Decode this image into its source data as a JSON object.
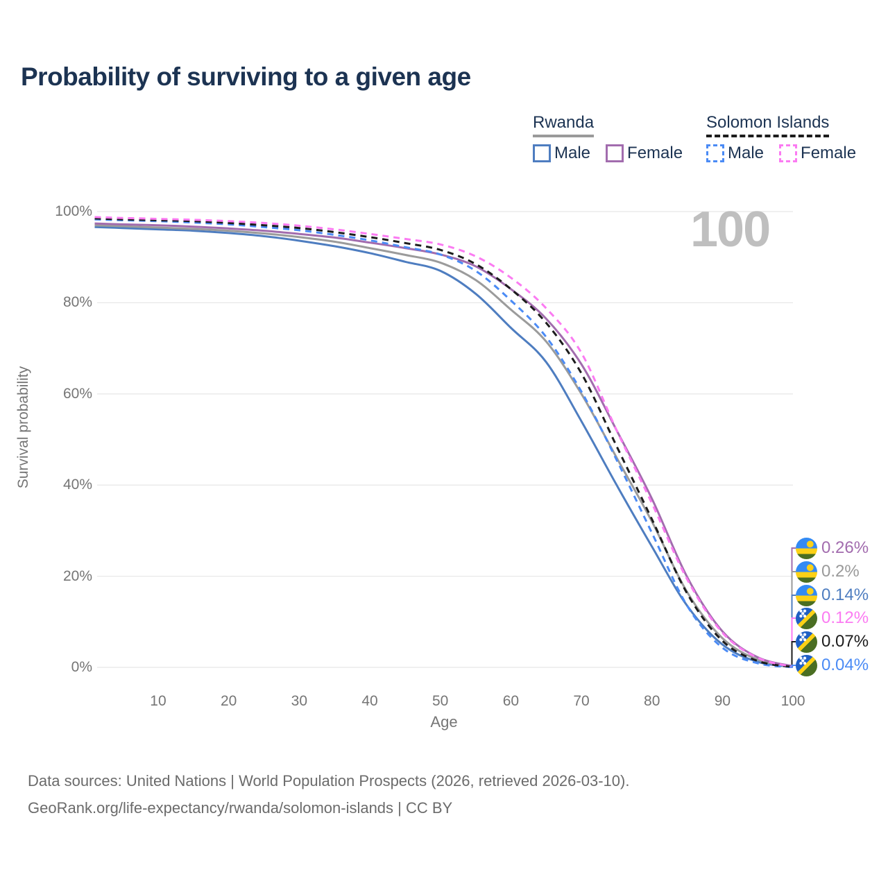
{
  "title": "Probability of surviving to a given age",
  "watermark": "100",
  "legend": {
    "groups": [
      {
        "id": "rwanda",
        "title": "Rwanda",
        "line_style": "solid",
        "underline_color": "#9a9a9a",
        "items": [
          {
            "label": "Male",
            "color": "#4e7dc0"
          },
          {
            "label": "Female",
            "color": "#a26cae"
          }
        ]
      },
      {
        "id": "solomon-islands",
        "title": "Solomon Islands",
        "line_style": "dashed",
        "underline_color": "#1c1c1c",
        "items": [
          {
            "label": "Male",
            "color": "#4b8bf5"
          },
          {
            "label": "Female",
            "color": "#fb7bf2"
          }
        ]
      }
    ]
  },
  "chart_data": {
    "type": "line",
    "title": "Probability of surviving to a given age",
    "xlabel": "Age",
    "ylabel": "Survival probability",
    "xlim": [
      0,
      100
    ],
    "ylim": [
      0,
      100
    ],
    "grid": "horizontal",
    "legend_position": "top-right",
    "x_ticks": [
      "10",
      "20",
      "30",
      "40",
      "50",
      "60",
      "70",
      "80",
      "90",
      "100"
    ],
    "y_ticks": [
      {
        "label": "100%",
        "value": 100
      },
      {
        "label": "80%",
        "value": 80
      },
      {
        "label": "60%",
        "value": 60
      },
      {
        "label": "40%",
        "value": 40
      },
      {
        "label": "20%",
        "value": 20
      },
      {
        "label": "0%",
        "value": 0
      }
    ],
    "ages": [
      1,
      5,
      10,
      15,
      20,
      25,
      30,
      35,
      40,
      45,
      50,
      55,
      60,
      65,
      70,
      75,
      80,
      85,
      90,
      95,
      100
    ],
    "series": [
      {
        "id": "rw_m",
        "name": "Rwanda Male",
        "color": "#4e7dc0",
        "dashed": false,
        "values": [
          96.6,
          96.4,
          96.1,
          95.8,
          95.3,
          94.6,
          93.6,
          92.4,
          90.9,
          89.0,
          87.0,
          82.0,
          74.5,
          67.0,
          54.0,
          40.0,
          26.5,
          13.5,
          5.0,
          1.2,
          0.14
        ]
      },
      {
        "id": "rw_t",
        "name": "Rwanda (both sexes)",
        "color": "#9b9b9b",
        "dashed": false,
        "values": [
          97.0,
          96.8,
          96.5,
          96.2,
          95.8,
          95.2,
          94.4,
          93.4,
          92.0,
          90.5,
          88.8,
          85.0,
          78.5,
          71.5,
          60.0,
          46.0,
          32.0,
          16.5,
          6.4,
          1.7,
          0.2
        ]
      },
      {
        "id": "rw_f",
        "name": "Rwanda Female",
        "color": "#a26cae",
        "dashed": false,
        "values": [
          97.4,
          97.2,
          97.0,
          96.7,
          96.3,
          95.8,
          95.1,
          94.3,
          93.2,
          92.0,
          90.6,
          88.0,
          83.0,
          76.5,
          66.5,
          52.0,
          37.0,
          19.8,
          7.9,
          2.2,
          0.26
        ]
      },
      {
        "id": "si_m",
        "name": "Solomon Islands Male",
        "color": "#4b8bf5",
        "dashed": true,
        "values": [
          98.3,
          98.1,
          97.9,
          97.6,
          97.2,
          96.6,
          95.9,
          94.9,
          93.7,
          92.2,
          90.6,
          87.0,
          80.5,
          72.5,
          60.5,
          45.5,
          29.5,
          13.5,
          4.3,
          0.9,
          0.04
        ]
      },
      {
        "id": "si_t",
        "name": "Solomon Islands (both sexes)",
        "color": "#1c1c1c",
        "dashed": true,
        "values": [
          98.5,
          98.3,
          98.1,
          97.9,
          97.5,
          97.0,
          96.4,
          95.5,
          94.4,
          93.1,
          91.6,
          88.5,
          83.0,
          75.6,
          64.5,
          48.5,
          32.5,
          16.2,
          5.8,
          1.4,
          0.07
        ]
      },
      {
        "id": "si_f",
        "name": "Solomon Islands Female",
        "color": "#fb7bf2",
        "dashed": true,
        "values": [
          98.8,
          98.6,
          98.4,
          98.2,
          97.9,
          97.5,
          96.9,
          96.1,
          95.1,
          94.0,
          92.8,
          90.2,
          85.5,
          78.8,
          69.0,
          52.0,
          36.0,
          19.3,
          7.6,
          2.1,
          0.12
        ]
      }
    ],
    "end_labels": [
      {
        "series": "rw_f",
        "value": "0.26%",
        "color": "#a26cae",
        "flag": "rwanda"
      },
      {
        "series": "rw_t",
        "value": "0.2%",
        "color": "#9a9a9a",
        "flag": "rwanda"
      },
      {
        "series": "rw_m",
        "value": "0.14%",
        "color": "#4e7dc0",
        "flag": "rwanda"
      },
      {
        "series": "si_f",
        "value": "0.12%",
        "color": "#fb7bf2",
        "flag": "solomon-islands"
      },
      {
        "series": "si_t",
        "value": "0.07%",
        "color": "#1c1c1c",
        "flag": "solomon-islands"
      },
      {
        "series": "si_m",
        "value": "0.04%",
        "color": "#4b8bf5",
        "flag": "solomon-islands"
      }
    ]
  },
  "footer": {
    "line1": "Data sources: United Nations | World Population Prospects (2026, retrieved 2026-03-10).",
    "line2": "GeoRank.org/life-expectancy/rwanda/solomon-islands | CC BY"
  }
}
